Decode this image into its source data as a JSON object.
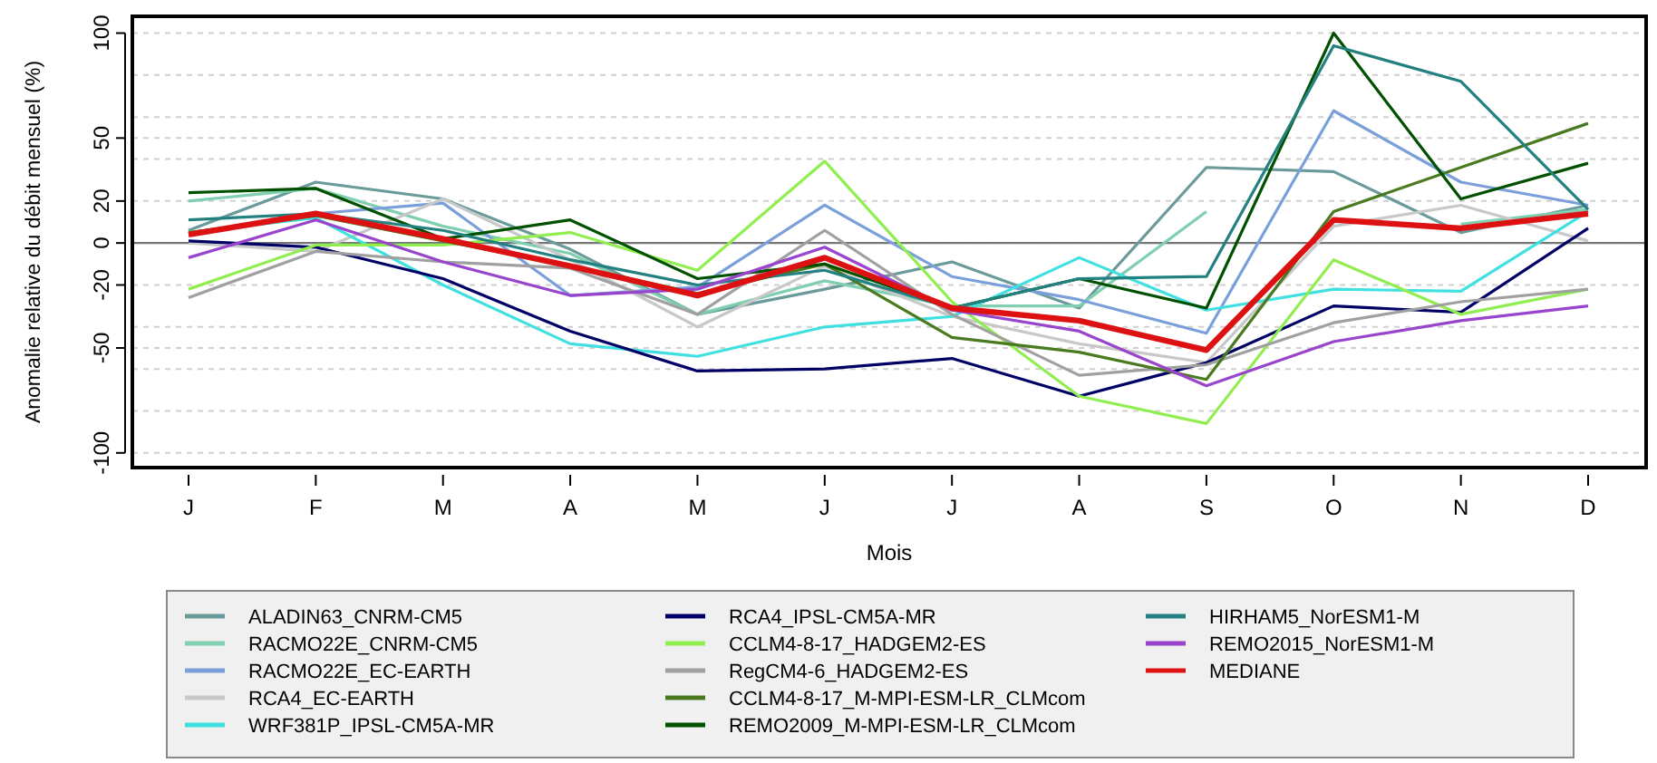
{
  "chart_data": {
    "type": "line",
    "xlabel": "Mois",
    "ylabel": "Anomalie relative du débit mensuel (%)",
    "categories": [
      "J",
      "F",
      "M",
      "A",
      "M",
      "J",
      "J",
      "A",
      "S",
      "O",
      "N",
      "D"
    ],
    "ylim": [
      -107,
      108
    ],
    "yticks": [
      -100,
      {
        "value": -80,
        "label": null
      },
      {
        "value": -60,
        "label": null
      },
      -50,
      {
        "value": -40,
        "label": null
      },
      -20,
      0,
      20,
      {
        "value": 40,
        "label": null
      },
      50,
      {
        "value": 60,
        "label": null
      },
      {
        "value": 80,
        "label": null
      },
      100
    ],
    "grid": "y",
    "legend": "bottom",
    "line_style": "solid",
    "marker": "none",
    "ref_lines": [
      {
        "axis": "y",
        "value": 0,
        "color": "#777777"
      }
    ],
    "series": [
      {
        "name": "ALADIN63_CNRM-CM5",
        "color": "#6a9a9a",
        "values": [
          6,
          29,
          21,
          -3,
          -34,
          -22,
          -9,
          -31,
          36,
          34,
          5,
          18
        ]
      },
      {
        "name": "RACMO22E_CNRM-CM5",
        "color": "#7fcfb0",
        "values": [
          20,
          26,
          8,
          -5,
          -34,
          -18,
          -30,
          -30,
          15,
          null,
          9,
          16
        ]
      },
      {
        "name": "RACMO22E_EC-EARTH",
        "color": "#7b9fdb",
        "values": [
          4,
          14,
          19,
          -25,
          -21,
          18,
          -16,
          -27,
          -43,
          63,
          29,
          18
        ]
      },
      {
        "name": "RCA4_EC-EARTH",
        "color": "#c8c8c8",
        "values": [
          0,
          -4,
          21,
          -8,
          -40,
          -11,
          -35,
          -48,
          -57,
          8,
          18,
          1
        ]
      },
      {
        "name": "WRF381P_IPSL-CM5A-MR",
        "color": "#40e0e0",
        "values": [
          5,
          12,
          -20,
          -48,
          -54,
          -40,
          -35,
          -7,
          -32,
          -22,
          -23,
          15
        ]
      },
      {
        "name": "RCA4_IPSL-CM5A-MR",
        "color": "#000066",
        "values": [
          1,
          -2,
          -17,
          -42,
          -61,
          -60,
          -55,
          -73,
          -57,
          -30,
          -33,
          7
        ]
      },
      {
        "name": "CCLM4-8-17_HADGEM2-ES",
        "color": "#90ee50",
        "values": [
          -22,
          -1,
          -1,
          5,
          -13,
          39,
          -28,
          -73,
          -86,
          -8,
          -34,
          -22
        ]
      },
      {
        "name": "RegCM4-6_HADGEM2-ES",
        "color": "#a0a0a0",
        "values": [
          -26,
          -4,
          -9,
          -12,
          -34,
          6,
          -34,
          -63,
          -58,
          -38,
          -28,
          -22
        ]
      },
      {
        "name": "CCLM4-8-17_M-MPI-ESM-LR_CLMcom",
        "color": "#4a7a20",
        "values": [
          5,
          13,
          1,
          -11,
          -24,
          -10,
          -45,
          -52,
          -65,
          15,
          36,
          57
        ]
      },
      {
        "name": "REMO2009_M-MPI-ESM-LR_CLMcom",
        "color": "#005000",
        "values": [
          24,
          26,
          2,
          11,
          -17,
          -10,
          -31,
          -17,
          -31,
          100,
          21,
          38
        ]
      },
      {
        "name": "HIRHAM5_NorESM1-M",
        "color": "#228080",
        "values": [
          11,
          14,
          6,
          -8,
          -20,
          -13,
          -31,
          -17,
          -16,
          94,
          77,
          16
        ]
      },
      {
        "name": "REMO2015_NorESM1-M",
        "color": "#9944cc",
        "values": [
          -7,
          11,
          -9,
          -25,
          -22,
          -2,
          -32,
          -42,
          -68,
          -47,
          -37,
          -30
        ]
      },
      {
        "name": "MEDIANE",
        "color": "#dd1111",
        "values": [
          4,
          14,
          2,
          -11,
          -25,
          -7,
          -31,
          -37,
          -51,
          11,
          7,
          14
        ]
      }
    ]
  }
}
